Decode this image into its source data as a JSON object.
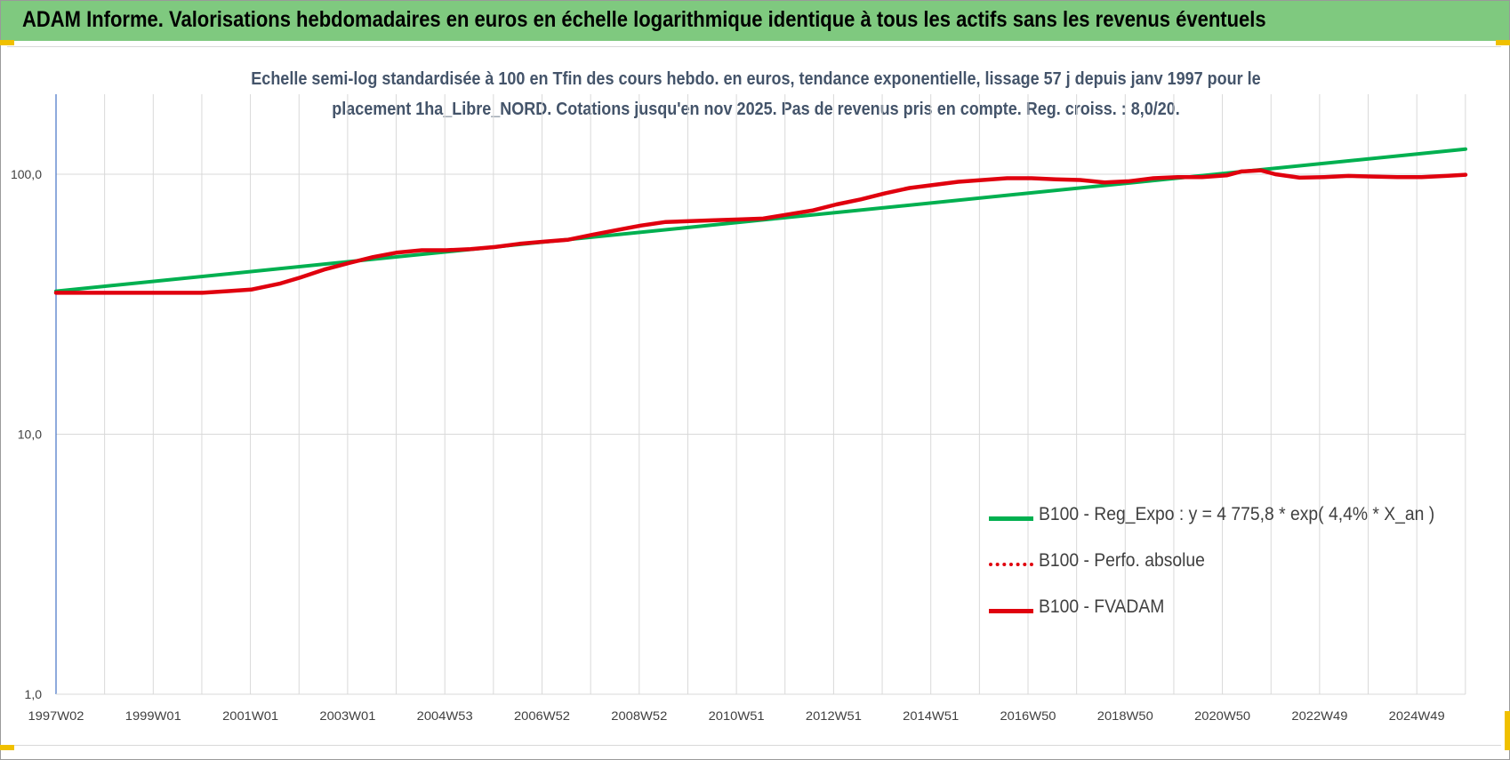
{
  "header": {
    "title": "ADAM Informe. Valorisations hebdomadaires en euros en échelle logarithmique identique à tous les actifs sans les revenus éventuels"
  },
  "chart_data": {
    "type": "line",
    "title": "Echelle semi-log standardisée à 100 en Tfin des cours hebdo. en euros, tendance exponentielle, lissage 57 j depuis janv 1997 pour le placement 1ha_Libre_NORD. Cotations jusqu'en nov 2025.  Pas de revenus pris en compte. Reg. croiss. : 8,0/20.",
    "xlabel": "",
    "ylabel": "",
    "y_scale": "log",
    "ylim": [
      1,
      200
    ],
    "y_ticks": [
      "1,0",
      "10,0",
      "100,0"
    ],
    "y_tick_values": [
      1,
      10,
      100
    ],
    "x_tick_labels": [
      "1997W02",
      "1999W01",
      "2001W01",
      "2003W01",
      "2004W53",
      "2006W52",
      "2008W52",
      "2010W51",
      "2012W51",
      "2014W51",
      "2016W50",
      "2018W50",
      "2020W50",
      "2022W49",
      "2024W49"
    ],
    "x_range": [
      1997.0,
      2025.9
    ],
    "grid": true,
    "legend_position": "bottom-right",
    "colors": {
      "reg": "#00b050",
      "perf": "#e0000e",
      "fvadam": "#e0000e",
      "axis": "#4472c4",
      "grid": "#d9d9d9"
    },
    "series": [
      {
        "name": "B100 - Reg_Expo : y = 4 775,8 * exp( 4,4% *  X_an )",
        "style": "solid",
        "x": [
          1997.0,
          2025.9
        ],
        "y": [
          35.5,
          125
        ]
      },
      {
        "name": "B100 - Perfo. absolue",
        "style": "dotted",
        "x": [],
        "y": []
      },
      {
        "name": "B100 - FVADAM",
        "style": "solid",
        "x": [
          1997.0,
          1998.0,
          1999.0,
          2000.0,
          2000.5,
          2001.0,
          2001.6,
          2002.0,
          2002.5,
          2003.0,
          2003.5,
          2004.0,
          2004.5,
          2005.0,
          2005.5,
          2006.0,
          2006.5,
          2007.0,
          2007.5,
          2008.0,
          2008.5,
          2009.0,
          2009.5,
          2010.0,
          2010.5,
          2011.0,
          2011.5,
          2012.0,
          2012.5,
          2013.0,
          2013.5,
          2014.0,
          2014.5,
          2015.0,
          2015.5,
          2016.0,
          2016.5,
          2017.0,
          2017.5,
          2018.0,
          2018.5,
          2019.0,
          2019.5,
          2020.0,
          2020.5,
          2021.0,
          2021.3,
          2021.7,
          2022.0,
          2022.5,
          2023.0,
          2023.5,
          2024.0,
          2024.5,
          2025.0,
          2025.5,
          2025.9
        ],
        "y": [
          35,
          35,
          35,
          35,
          35.5,
          36,
          38,
          40,
          43,
          45.5,
          48,
          50,
          51,
          51,
          51.5,
          52.5,
          54,
          55,
          56,
          58.5,
          61,
          63.5,
          65.5,
          66,
          66.5,
          67,
          67.5,
          70,
          72.5,
          76.5,
          80,
          84.5,
          88.5,
          91,
          93.5,
          95,
          96.5,
          96.5,
          95.5,
          95,
          93,
          94,
          96.5,
          97.5,
          97.5,
          99,
          102.5,
          103.5,
          100,
          97,
          97.5,
          98.5,
          98,
          97.5,
          97.5,
          98.5,
          99.5
        ]
      }
    ]
  }
}
